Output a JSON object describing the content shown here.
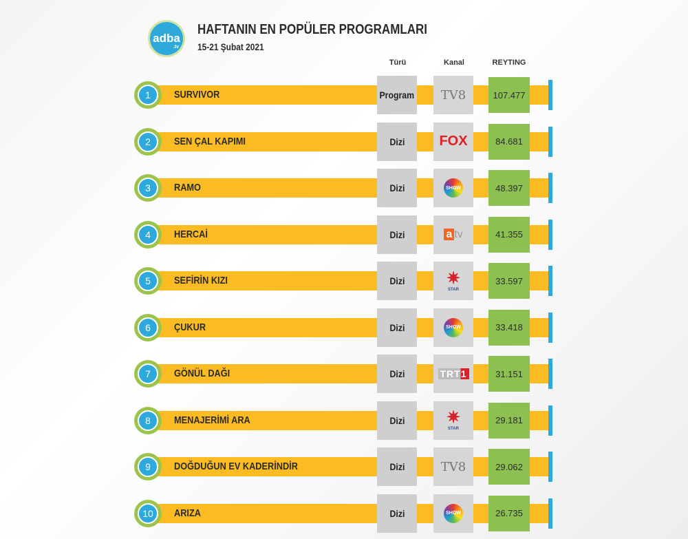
{
  "header": {
    "logo": "adba",
    "logo_suffix": ".tv",
    "title": "HAFTANIN EN POPÜLER PROGRAMLARI",
    "subtitle": "15-21 Şubat  2021"
  },
  "columns": {
    "type": "Türü",
    "channel": "Kanal",
    "rating": "REYTING"
  },
  "colors": {
    "bar": "#fbbb22",
    "rank": "#2ea9dc",
    "ring": "#9cc34a",
    "rating_box": "#8cc152",
    "box": "#cfcfcf"
  },
  "chart_data": {
    "type": "table",
    "title": "HAFTANIN EN POPÜLER PROGRAMLARI",
    "subtitle": "15-21 Şubat  2021",
    "headers": [
      "Türü",
      "Kanal",
      "REYTING"
    ],
    "rows": [
      {
        "rank": "1",
        "name": "SURVIVOR",
        "type": "Program",
        "channel": "TV8",
        "logo": "tv8",
        "rating": "107.477"
      },
      {
        "rank": "2",
        "name": "SEN ÇAL KAPIMI",
        "type": "Dizi",
        "channel": "FOX",
        "logo": "fox",
        "rating": "84.681"
      },
      {
        "rank": "3",
        "name": "RAMO",
        "type": "Dizi",
        "channel": "SHOW",
        "logo": "show",
        "rating": "48.397"
      },
      {
        "rank": "4",
        "name": "HERCAİ",
        "type": "Dizi",
        "channel": "atv",
        "logo": "atv",
        "rating": "41.355"
      },
      {
        "rank": "5",
        "name": "SEFİRİN KIZI",
        "type": "Dizi",
        "channel": "STAR",
        "logo": "star",
        "rating": "33.597"
      },
      {
        "rank": "6",
        "name": "ÇUKUR",
        "type": "Dizi",
        "channel": "SHOW",
        "logo": "show",
        "rating": "33.418"
      },
      {
        "rank": "7",
        "name": "GÖNÜL DAĞI",
        "type": "Dizi",
        "channel": "TRT1",
        "logo": "trt",
        "rating": "31.151"
      },
      {
        "rank": "8",
        "name": "MENAJERİMİ ARA",
        "type": "Dizi",
        "channel": "STAR",
        "logo": "star",
        "rating": "29.181"
      },
      {
        "rank": "9",
        "name": "DOĞDUĞUN EV KADERİNDİR",
        "type": "Dizi",
        "channel": "TV8",
        "logo": "tv8",
        "rating": "29.062"
      },
      {
        "rank": "10",
        "name": "ARIZA",
        "type": "Dizi",
        "channel": "SHOW",
        "logo": "show",
        "rating": "26.735"
      }
    ]
  }
}
